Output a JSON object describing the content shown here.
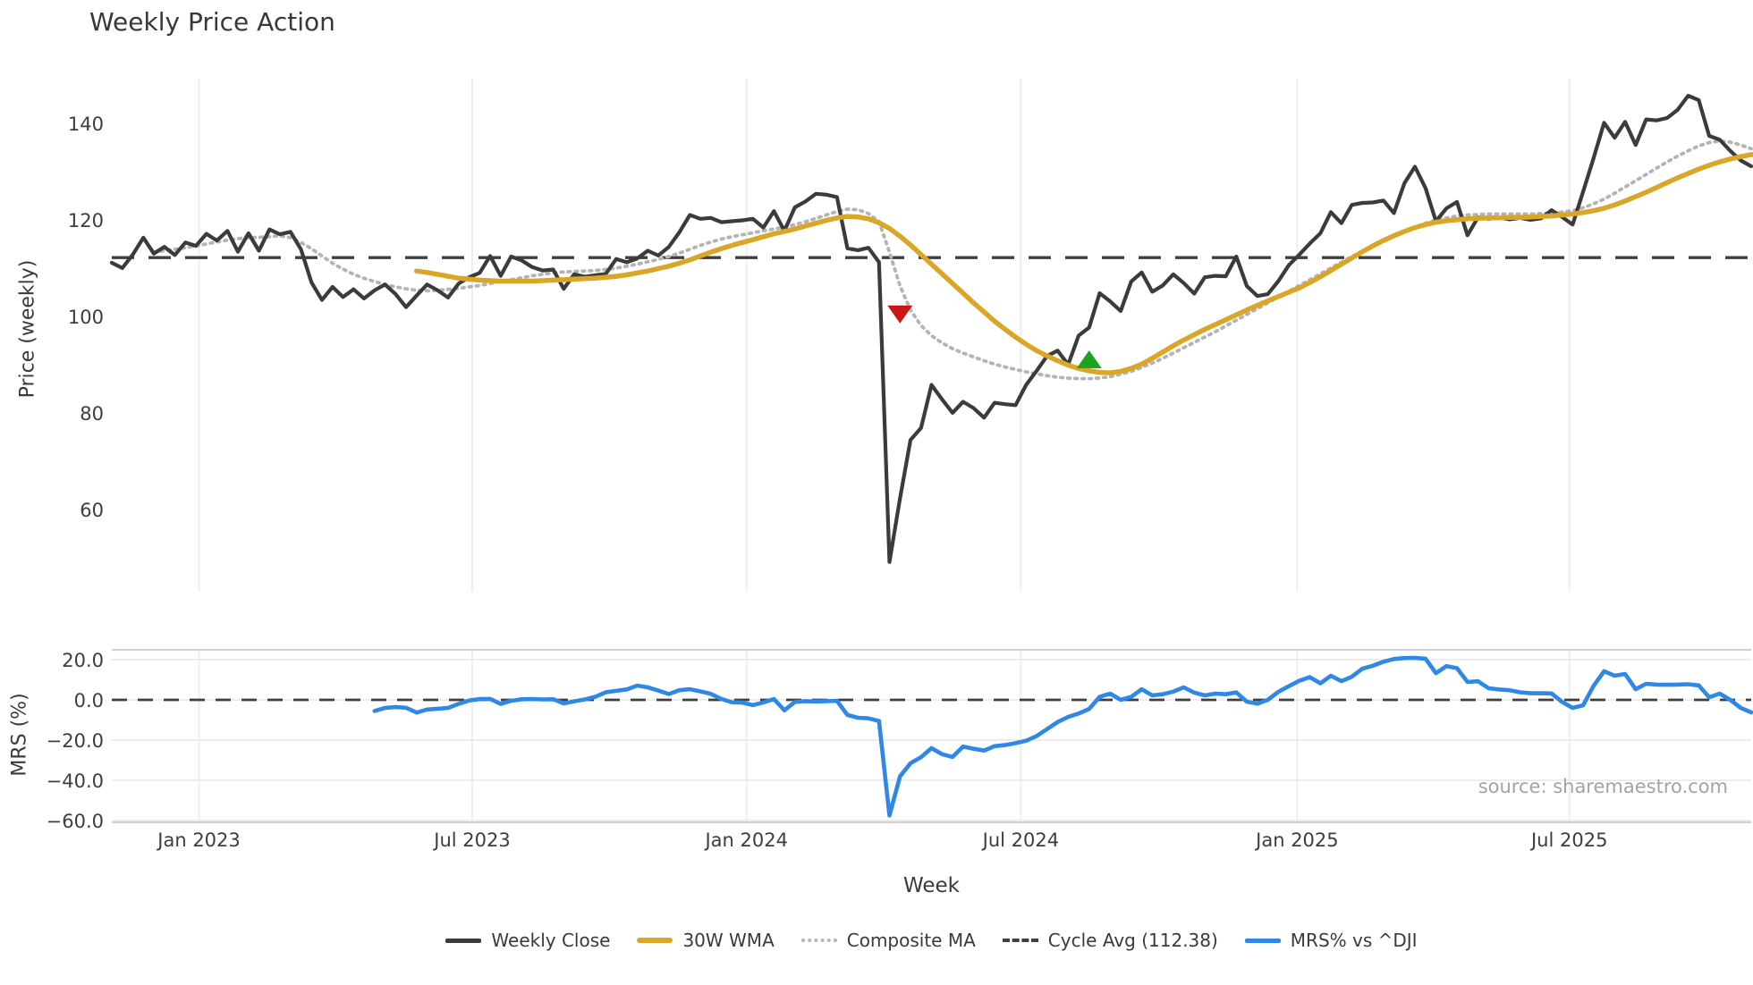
{
  "source": "source: sharemaestro.com",
  "legend": {
    "items": [
      {
        "label": "Weekly Close",
        "color": "#3b3b3b",
        "style": "solid"
      },
      {
        "label": "30W WMA",
        "color": "#d9a628",
        "style": "thick"
      },
      {
        "label": "Composite MA",
        "color": "#b4b4b4",
        "style": "dotted"
      },
      {
        "label": "Cycle Avg (112.38)",
        "color": "#3f3f3f",
        "style": "dashed"
      },
      {
        "label": "MRS% vs ^DJI",
        "color": "#2f88e5",
        "style": "solid"
      }
    ]
  },
  "chart_data": {
    "type": "line",
    "title": "Weekly Price Action",
    "xlabel": "Week",
    "x_unit": "week_index",
    "n_weeks": 157,
    "x_ticks": [
      {
        "label": "Jan 2023",
        "week": 8.3
      },
      {
        "label": "Jul 2023",
        "week": 34.3
      },
      {
        "label": "Jan 2024",
        "week": 60.4
      },
      {
        "label": "Jul 2024",
        "week": 86.5
      },
      {
        "label": "Jan 2025",
        "week": 112.8
      },
      {
        "label": "Jul 2025",
        "week": 138.7
      }
    ],
    "style": {
      "grid_color": "#ececf1",
      "mrs_grid_color": "#e7e7ec",
      "spine_color": "#c6c9d0",
      "tick_color": "#3d3d3d"
    },
    "panels": [
      {
        "name": "price",
        "ylabel": "Price (weekly)",
        "ylim": [
          43,
          149.5
        ],
        "yticks": [
          {
            "label": "140",
            "value": 140
          },
          {
            "label": "120",
            "value": 120
          },
          {
            "label": "100",
            "value": 100
          },
          {
            "label": "80",
            "value": 80
          },
          {
            "label": "60",
            "value": 60
          }
        ],
        "cycle_avg": 112.38,
        "cycle_avg_color": "#3f3f3f",
        "series": [
          {
            "name": "Weekly Close",
            "color": "#3b3b3b",
            "style": "solid",
            "width": 4.2,
            "start_week": 0,
            "values": [
              111.3,
              110.2,
              113.0,
              116.5,
              113.2,
              114.6,
              112.9,
              115.5,
              114.8,
              117.3,
              115.9,
              117.9,
              113.6,
              117.4,
              113.8,
              118.2,
              117.2,
              117.7,
              114.1,
              107.2,
              103.6,
              106.3,
              104.2,
              105.8,
              103.9,
              105.6,
              106.8,
              104.8,
              102.1,
              104.5,
              106.8,
              105.6,
              104.1,
              107.0,
              108.3,
              109.2,
              112.7,
              108.6,
              112.6,
              111.8,
              110.4,
              109.7,
              109.9,
              105.9,
              108.9,
              108.4,
              108.7,
              109.0,
              112.1,
              111.4,
              112.2,
              113.8,
              112.8,
              114.6,
              117.6,
              121.2,
              120.4,
              120.6,
              119.7,
              119.9,
              120.1,
              120.4,
              118.6,
              122.0,
              117.9,
              122.8,
              124.0,
              125.6,
              125.4,
              124.9,
              114.3,
              113.9,
              114.4,
              111.4,
              49.3,
              62.5,
              74.6,
              77.1,
              86.0,
              83.0,
              80.2,
              82.5,
              81.2,
              79.2,
              82.3,
              82.0,
              81.8,
              86.0,
              88.9,
              92.0,
              93.1,
              90.2,
              96.2,
              97.9,
              105.0,
              103.3,
              101.3,
              107.4,
              109.3,
              105.3,
              106.6,
              108.9,
              107.1,
              104.9,
              108.3,
              108.6,
              108.5,
              112.6,
              106.5,
              104.4,
              104.8,
              107.5,
              110.8,
              113.0,
              115.3,
              117.4,
              121.8,
              119.5,
              123.3,
              123.7,
              123.8,
              124.2,
              121.6,
              127.8,
              131.2,
              126.8,
              119.9,
              122.6,
              123.9,
              117.0,
              120.7,
              120.4,
              120.7,
              120.3,
              120.6,
              120.2,
              120.5,
              122.2,
              120.8,
              119.2,
              126.0,
              133.0,
              140.3,
              137.2,
              140.5,
              135.7,
              141.0,
              140.8,
              141.3,
              143.0,
              145.9,
              145.0,
              137.6,
              136.8,
              134.5,
              132.5,
              131.3
            ]
          },
          {
            "name": "30W WMA",
            "color": "#d9a628",
            "style": "solid",
            "width": 5.5,
            "start_week": 29,
            "values": [
              109.6,
              109.3,
              108.9,
              108.5,
              108.1,
              107.9,
              107.7,
              107.6,
              107.5,
              107.5,
              107.5,
              107.5,
              107.6,
              107.7,
              107.8,
              107.9,
              108.0,
              108.1,
              108.3,
              108.5,
              108.8,
              109.2,
              109.6,
              110.1,
              110.6,
              111.2,
              111.9,
              112.7,
              113.5,
              114.2,
              114.9,
              115.5,
              116.1,
              116.7,
              117.3,
              117.8,
              118.3,
              118.9,
              119.5,
              120.1,
              120.6,
              120.9,
              120.8,
              120.4,
              119.6,
              118.4,
              116.8,
              115.0,
              113.0,
              111.0,
              109.0,
              107.0,
              105.0,
              103.0,
              101.1,
              99.2,
              97.5,
              95.9,
              94.4,
              93.1,
              92.0,
              91.0,
              90.1,
              89.4,
              88.9,
              88.6,
              88.5,
              88.8,
              89.4,
              90.3,
              91.5,
              92.8,
              94.1,
              95.3,
              96.4,
              97.5,
              98.5,
              99.5,
              100.5,
              101.5,
              102.5,
              103.4,
              104.3,
              105.2,
              106.1,
              107.2,
              108.4,
              109.7,
              111.0,
              112.3,
              113.6,
              114.8,
              115.9,
              116.9,
              117.8,
              118.6,
              119.2,
              119.7,
              120.0,
              120.2,
              120.4,
              120.5,
              120.6,
              120.6,
              120.7,
              120.7,
              120.8,
              120.9,
              121.0,
              121.2,
              121.4,
              121.7,
              122.1,
              122.6,
              123.3,
              124.1,
              125.0,
              125.9,
              126.9,
              127.9,
              128.9,
              129.8,
              130.7,
              131.5,
              132.2,
              132.8,
              133.3,
              133.7,
              133.9
            ]
          },
          {
            "name": "Composite MA",
            "color": "#b4b4b4",
            "style": "dotted",
            "width": 3.8,
            "start_week": 4,
            "values": [
              113.5,
              113.8,
              114.1,
              114.4,
              114.8,
              115.2,
              115.6,
              116.0,
              116.3,
              116.5,
              116.6,
              116.7,
              116.9,
              116.5,
              115.5,
              114.2,
              112.7,
              111.2,
              110.0,
              108.9,
              108.1,
              107.4,
              106.8,
              106.3,
              105.9,
              105.6,
              105.5,
              105.6,
              105.8,
              106.0,
              106.3,
              106.6,
              107.0,
              107.4,
              107.8,
              108.2,
              108.6,
              108.9,
              109.2,
              109.4,
              109.5,
              109.6,
              109.7,
              109.9,
              110.2,
              110.6,
              111.0,
              111.5,
              112.0,
              112.6,
              113.3,
              114.1,
              114.9,
              115.6,
              116.2,
              116.7,
              117.1,
              117.5,
              117.9,
              118.3,
              118.7,
              119.2,
              119.8,
              120.5,
              121.2,
              121.9,
              122.4,
              122.3,
              121.5,
              119.8,
              113.5,
              106.5,
              101.5,
              98.3,
              96.2,
              94.7,
              93.5,
              92.6,
              91.8,
              91.0,
              90.3,
              89.7,
              89.2,
              88.7,
              88.3,
              87.9,
              87.6,
              87.4,
              87.3,
              87.3,
              87.4,
              87.7,
              88.2,
              88.8,
              89.6,
              90.5,
              91.5,
              92.6,
              93.7,
              94.8,
              95.9,
              97.0,
              98.2,
              99.4,
              100.6,
              101.8,
              103.0,
              104.2,
              105.4,
              106.6,
              107.8,
              109.0,
              110.2,
              111.4,
              112.6,
              113.7,
              114.8,
              115.8,
              116.8,
              117.8,
              118.7,
              119.5,
              120.1,
              120.6,
              121.0,
              121.2,
              121.3,
              121.4,
              121.4,
              121.4,
              121.4,
              121.4,
              121.5,
              121.6,
              121.8,
              122.1,
              122.7,
              123.5,
              124.5,
              125.7,
              127.0,
              128.3,
              129.6,
              130.9,
              132.2,
              133.4,
              134.5,
              135.5,
              136.2,
              136.5,
              136.3,
              135.7,
              134.9
            ]
          }
        ],
        "markers": [
          {
            "type": "sell-signal",
            "shape": "triangle-down",
            "color": "#cc1517",
            "week": 75,
            "price": 100.6
          },
          {
            "type": "buy-signal",
            "shape": "triangle-up",
            "color": "#1fa31f",
            "week": 93,
            "price": 91.3
          }
        ]
      },
      {
        "name": "mrs",
        "ylabel": "MRS (%)",
        "ylim": [
          -60.9,
          24.9
        ],
        "yticks": [
          {
            "label": "20.0",
            "value": 20
          },
          {
            "label": "0.0",
            "value": 0
          },
          {
            "label": "−20.0",
            "value": -20
          },
          {
            "label": "−40.0",
            "value": -40
          },
          {
            "label": "−60.0",
            "value": -60
          }
        ],
        "zero_dashed": 0,
        "series": [
          {
            "name": "MRS% vs ^DJI",
            "color": "#2f88e5",
            "style": "solid",
            "width": 4.6,
            "start_week": 25,
            "values": [
              -5.5,
              -4.0,
              -3.6,
              -3.9,
              -6.3,
              -4.8,
              -4.4,
              -4.0,
              -2.0,
              -0.3,
              0.4,
              0.5,
              -2.0,
              -0.5,
              0.3,
              0.4,
              0.2,
              0.3,
              -1.8,
              -0.7,
              0.2,
              1.5,
              3.8,
              4.5,
              5.2,
              7.1,
              6.2,
              4.6,
              2.9,
              4.8,
              5.3,
              4.2,
              3.0,
              0.5,
              -1.2,
              -1.4,
              -2.6,
              -1.3,
              0.4,
              -5.2,
              -1.0,
              -0.6,
              -0.8,
              -0.6,
              -0.5,
              -7.5,
              -8.9,
              -9.2,
              -10.5,
              -57.5,
              -38.0,
              -31.5,
              -28.5,
              -24.0,
              -27.0,
              -28.4,
              -23.2,
              -24.3,
              -25.2,
              -23.0,
              -22.5,
              -21.5,
              -20.3,
              -18.0,
              -14.5,
              -11.0,
              -8.5,
              -6.8,
              -4.5,
              1.5,
              3.1,
              0.0,
              1.5,
              5.3,
              2.2,
              2.8,
              4.1,
              6.2,
              3.6,
              2.2,
              3.1,
              2.8,
              3.7,
              -0.9,
              -1.9,
              0.0,
              4.0,
              6.8,
              9.5,
              11.3,
              8.2,
              12.0,
              9.3,
              11.5,
              15.5,
              17.0,
              19.0,
              20.3,
              20.8,
              20.9,
              20.5,
              13.3,
              16.8,
              15.8,
              8.9,
              9.3,
              5.8,
              5.2,
              4.8,
              3.8,
              3.3,
              3.3,
              3.2,
              -1.0,
              -4.0,
              -2.7,
              7.0,
              14.2,
              12.0,
              12.9,
              5.3,
              8.0,
              7.6,
              7.5,
              7.6,
              7.8,
              7.2,
              1.3,
              3.1,
              0.0,
              -4.0,
              -6.2
            ]
          }
        ]
      }
    ]
  }
}
